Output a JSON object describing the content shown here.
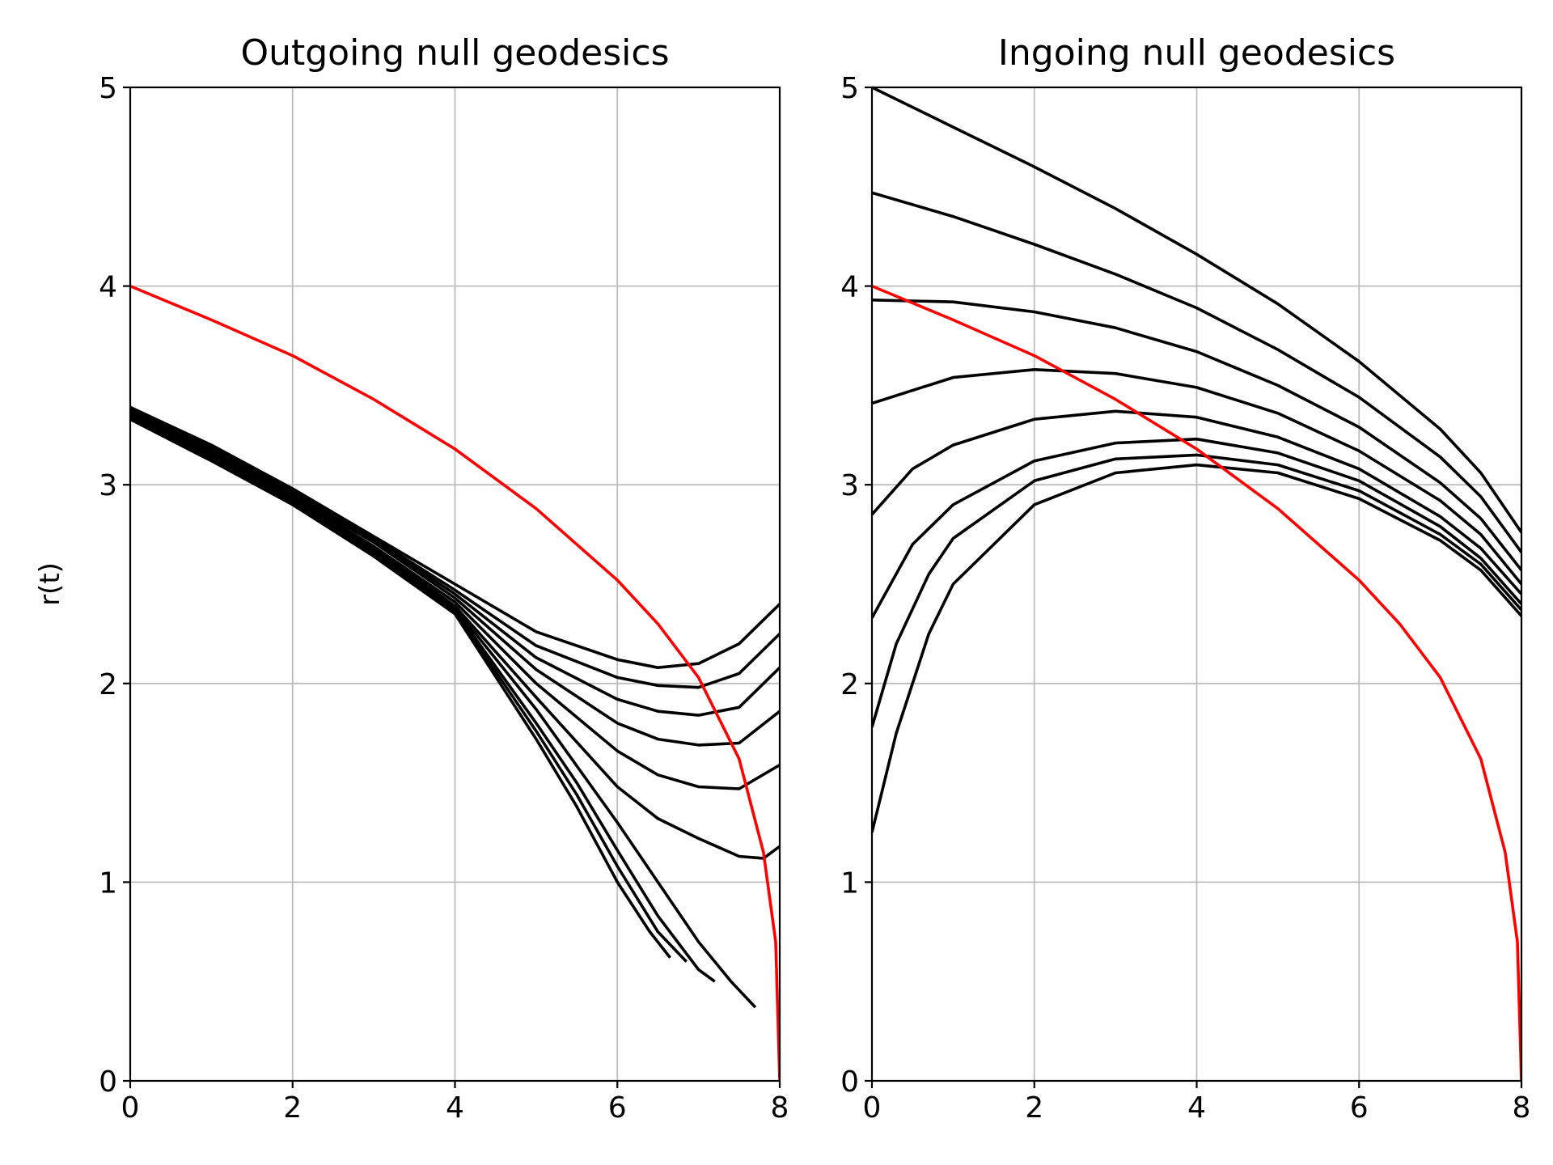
{
  "chart_data": [
    {
      "type": "line",
      "title": "Outgoing null geodesics",
      "xlabel": "",
      "ylabel": "r(t)",
      "xlim": [
        0,
        8
      ],
      "ylim": [
        0,
        5
      ],
      "xticks": [
        "0",
        "2",
        "4",
        "6",
        "8"
      ],
      "yticks": [
        "0",
        "1",
        "2",
        "3",
        "4",
        "5"
      ],
      "grid": true,
      "colors": {
        "geodesic": "#000000",
        "horizon": "#ff0000"
      },
      "series": [
        {
          "color": "#ff0000",
          "points": [
            [
              0,
              4.0
            ],
            [
              1,
              3.83
            ],
            [
              2,
              3.65
            ],
            [
              3,
              3.43
            ],
            [
              4,
              3.18
            ],
            [
              5,
              2.88
            ],
            [
              6,
              2.52
            ],
            [
              6.5,
              2.3
            ],
            [
              7,
              2.03
            ],
            [
              7.5,
              1.62
            ],
            [
              7.8,
              1.15
            ],
            [
              7.95,
              0.7
            ],
            [
              8.0,
              0.0
            ]
          ]
        },
        {
          "color": "#000000",
          "points": [
            [
              0,
              3.39
            ],
            [
              1,
              3.2
            ],
            [
              2,
              2.98
            ],
            [
              3,
              2.74
            ],
            [
              4,
              2.5
            ],
            [
              5,
              2.26
            ],
            [
              6,
              2.12
            ],
            [
              6.5,
              2.08
            ],
            [
              7,
              2.1
            ],
            [
              7.5,
              2.2
            ],
            [
              8,
              2.4
            ]
          ]
        },
        {
          "color": "#000000",
          "points": [
            [
              0,
              3.38
            ],
            [
              1,
              3.19
            ],
            [
              2,
              2.97
            ],
            [
              3,
              2.73
            ],
            [
              4,
              2.47
            ],
            [
              5,
              2.19
            ],
            [
              6,
              2.03
            ],
            [
              6.5,
              1.99
            ],
            [
              7,
              1.98
            ],
            [
              7.5,
              2.05
            ],
            [
              8,
              2.25
            ]
          ]
        },
        {
          "color": "#000000",
          "points": [
            [
              0,
              3.37
            ],
            [
              1,
              3.18
            ],
            [
              2,
              2.96
            ],
            [
              3,
              2.72
            ],
            [
              4,
              2.45
            ],
            [
              5,
              2.13
            ],
            [
              6,
              1.92
            ],
            [
              6.5,
              1.86
            ],
            [
              7,
              1.84
            ],
            [
              7.5,
              1.88
            ],
            [
              8,
              2.08
            ]
          ]
        },
        {
          "color": "#000000",
          "points": [
            [
              0,
              3.37
            ],
            [
              1,
              3.17
            ],
            [
              2,
              2.95
            ],
            [
              3,
              2.71
            ],
            [
              4,
              2.43
            ],
            [
              5,
              2.07
            ],
            [
              6,
              1.8
            ],
            [
              6.5,
              1.72
            ],
            [
              7,
              1.69
            ],
            [
              7.5,
              1.7
            ],
            [
              8,
              1.86
            ]
          ]
        },
        {
          "color": "#000000",
          "points": [
            [
              0,
              3.36
            ],
            [
              1,
              3.16
            ],
            [
              2,
              2.94
            ],
            [
              3,
              2.69
            ],
            [
              4,
              2.41
            ],
            [
              5,
              2.0
            ],
            [
              6,
              1.66
            ],
            [
              6.5,
              1.54
            ],
            [
              7,
              1.48
            ],
            [
              7.5,
              1.47
            ],
            [
              8,
              1.59
            ]
          ]
        },
        {
          "color": "#000000",
          "points": [
            [
              0,
              3.35
            ],
            [
              1,
              3.15
            ],
            [
              2,
              2.93
            ],
            [
              3,
              2.68
            ],
            [
              4,
              2.39
            ],
            [
              5,
              1.93
            ],
            [
              6,
              1.48
            ],
            [
              6.5,
              1.32
            ],
            [
              7,
              1.22
            ],
            [
              7.5,
              1.13
            ],
            [
              7.8,
              1.12
            ],
            [
              8,
              1.18
            ]
          ]
        },
        {
          "color": "#000000",
          "points": [
            [
              0,
              3.35
            ],
            [
              1,
              3.15
            ],
            [
              2,
              2.93
            ],
            [
              3,
              2.67
            ],
            [
              4,
              2.38
            ],
            [
              5,
              1.87
            ],
            [
              6,
              1.3
            ],
            [
              6.5,
              1.0
            ],
            [
              7,
              0.7
            ],
            [
              7.4,
              0.5
            ],
            [
              7.7,
              0.37
            ]
          ]
        },
        {
          "color": "#000000",
          "points": [
            [
              0,
              3.34
            ],
            [
              1,
              3.14
            ],
            [
              2,
              2.92
            ],
            [
              3,
              2.66
            ],
            [
              4,
              2.37
            ],
            [
              5,
              1.8
            ],
            [
              5.5,
              1.5
            ],
            [
              6,
              1.16
            ],
            [
              6.5,
              0.83
            ],
            [
              7,
              0.56
            ],
            [
              7.2,
              0.5
            ]
          ]
        },
        {
          "color": "#000000",
          "points": [
            [
              0,
              3.34
            ],
            [
              1,
              3.13
            ],
            [
              2,
              2.91
            ],
            [
              3,
              2.65
            ],
            [
              4,
              2.36
            ],
            [
              5,
              1.76
            ],
            [
              5.5,
              1.44
            ],
            [
              6,
              1.08
            ],
            [
              6.5,
              0.75
            ],
            [
              6.85,
              0.6
            ]
          ]
        },
        {
          "color": "#000000",
          "points": [
            [
              0,
              3.33
            ],
            [
              1,
              3.12
            ],
            [
              2,
              2.9
            ],
            [
              3,
              2.64
            ],
            [
              4,
              2.35
            ],
            [
              5,
              1.72
            ],
            [
              5.5,
              1.38
            ],
            [
              6,
              1.0
            ],
            [
              6.4,
              0.75
            ],
            [
              6.65,
              0.62
            ]
          ]
        }
      ]
    },
    {
      "type": "line",
      "title": "Ingoing null geodesics",
      "xlabel": "",
      "ylabel": "",
      "xlim": [
        0,
        8
      ],
      "ylim": [
        0,
        5
      ],
      "xticks": [
        "0",
        "2",
        "4",
        "6",
        "8"
      ],
      "yticks": [
        "0",
        "1",
        "2",
        "3",
        "4",
        "5"
      ],
      "grid": true,
      "colors": {
        "geodesic": "#000000",
        "horizon": "#ff0000"
      },
      "series": [
        {
          "color": "#ff0000",
          "points": [
            [
              0,
              4.0
            ],
            [
              1,
              3.83
            ],
            [
              2,
              3.65
            ],
            [
              3,
              3.43
            ],
            [
              4,
              3.18
            ],
            [
              5,
              2.88
            ],
            [
              6,
              2.52
            ],
            [
              6.5,
              2.3
            ],
            [
              7,
              2.03
            ],
            [
              7.5,
              1.62
            ],
            [
              7.8,
              1.15
            ],
            [
              7.95,
              0.7
            ],
            [
              8.0,
              0.0
            ]
          ]
        },
        {
          "color": "#000000",
          "points": [
            [
              0,
              5.0
            ],
            [
              1,
              4.8
            ],
            [
              2,
              4.6
            ],
            [
              3,
              4.39
            ],
            [
              4,
              4.16
            ],
            [
              5,
              3.91
            ],
            [
              6,
              3.62
            ],
            [
              7,
              3.28
            ],
            [
              7.5,
              3.06
            ],
            [
              8,
              2.76
            ]
          ]
        },
        {
          "color": "#000000",
          "points": [
            [
              0,
              4.47
            ],
            [
              1,
              4.35
            ],
            [
              2,
              4.21
            ],
            [
              3,
              4.06
            ],
            [
              4,
              3.89
            ],
            [
              5,
              3.68
            ],
            [
              6,
              3.44
            ],
            [
              7,
              3.14
            ],
            [
              7.5,
              2.94
            ],
            [
              8,
              2.66
            ]
          ]
        },
        {
          "color": "#000000",
          "points": [
            [
              0,
              3.93
            ],
            [
              1,
              3.92
            ],
            [
              2,
              3.87
            ],
            [
              3,
              3.79
            ],
            [
              4,
              3.67
            ],
            [
              5,
              3.5
            ],
            [
              6,
              3.29
            ],
            [
              7,
              3.01
            ],
            [
              7.5,
              2.83
            ],
            [
              8,
              2.57
            ]
          ]
        },
        {
          "color": "#000000",
          "points": [
            [
              0,
              3.41
            ],
            [
              1,
              3.54
            ],
            [
              2,
              3.58
            ],
            [
              3,
              3.56
            ],
            [
              4,
              3.49
            ],
            [
              5,
              3.36
            ],
            [
              6,
              3.17
            ],
            [
              7,
              2.92
            ],
            [
              7.5,
              2.75
            ],
            [
              8,
              2.5
            ]
          ]
        },
        {
          "color": "#000000",
          "points": [
            [
              0,
              2.85
            ],
            [
              0.5,
              3.08
            ],
            [
              1,
              3.2
            ],
            [
              2,
              3.33
            ],
            [
              3,
              3.37
            ],
            [
              4,
              3.34
            ],
            [
              5,
              3.24
            ],
            [
              6,
              3.08
            ],
            [
              7,
              2.84
            ],
            [
              7.5,
              2.68
            ],
            [
              8,
              2.45
            ]
          ]
        },
        {
          "color": "#000000",
          "points": [
            [
              0,
              2.33
            ],
            [
              0.5,
              2.7
            ],
            [
              1,
              2.9
            ],
            [
              2,
              3.12
            ],
            [
              3,
              3.21
            ],
            [
              4,
              3.23
            ],
            [
              5,
              3.16
            ],
            [
              6,
              3.02
            ],
            [
              7,
              2.79
            ],
            [
              7.5,
              2.63
            ],
            [
              8,
              2.4
            ]
          ]
        },
        {
          "color": "#000000",
          "points": [
            [
              0,
              1.78
            ],
            [
              0.3,
              2.2
            ],
            [
              0.7,
              2.55
            ],
            [
              1,
              2.73
            ],
            [
              2,
              3.02
            ],
            [
              3,
              3.13
            ],
            [
              4,
              3.15
            ],
            [
              5,
              3.1
            ],
            [
              6,
              2.97
            ],
            [
              7,
              2.75
            ],
            [
              7.5,
              2.6
            ],
            [
              8,
              2.37
            ]
          ]
        },
        {
          "color": "#000000",
          "points": [
            [
              0,
              1.25
            ],
            [
              0.3,
              1.75
            ],
            [
              0.7,
              2.25
            ],
            [
              1,
              2.5
            ],
            [
              2,
              2.9
            ],
            [
              3,
              3.06
            ],
            [
              4,
              3.1
            ],
            [
              5,
              3.06
            ],
            [
              6,
              2.93
            ],
            [
              7,
              2.72
            ],
            [
              7.5,
              2.57
            ],
            [
              8,
              2.34
            ]
          ]
        }
      ]
    }
  ]
}
